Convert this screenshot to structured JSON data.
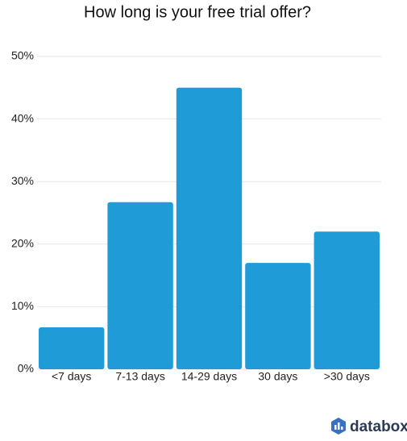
{
  "chart_data": {
    "type": "bar",
    "title": "How long is your free trial offer?",
    "categories": [
      "<7 days",
      "7-13 days",
      "14-29 days",
      "30 days",
      ">30 days"
    ],
    "values": [
      6.7,
      26.7,
      45,
      17,
      22
    ],
    "color": "#1f9bd7",
    "ylim": [
      0,
      50
    ],
    "yticks": [
      {
        "value": 0,
        "label": "0%"
      },
      {
        "value": 10,
        "label": "10%"
      },
      {
        "value": 20,
        "label": "20%"
      },
      {
        "value": 30,
        "label": "30%"
      },
      {
        "value": 40,
        "label": "40%"
      },
      {
        "value": 50,
        "label": "50%"
      }
    ],
    "grid": true,
    "logo_text": "databox"
  }
}
